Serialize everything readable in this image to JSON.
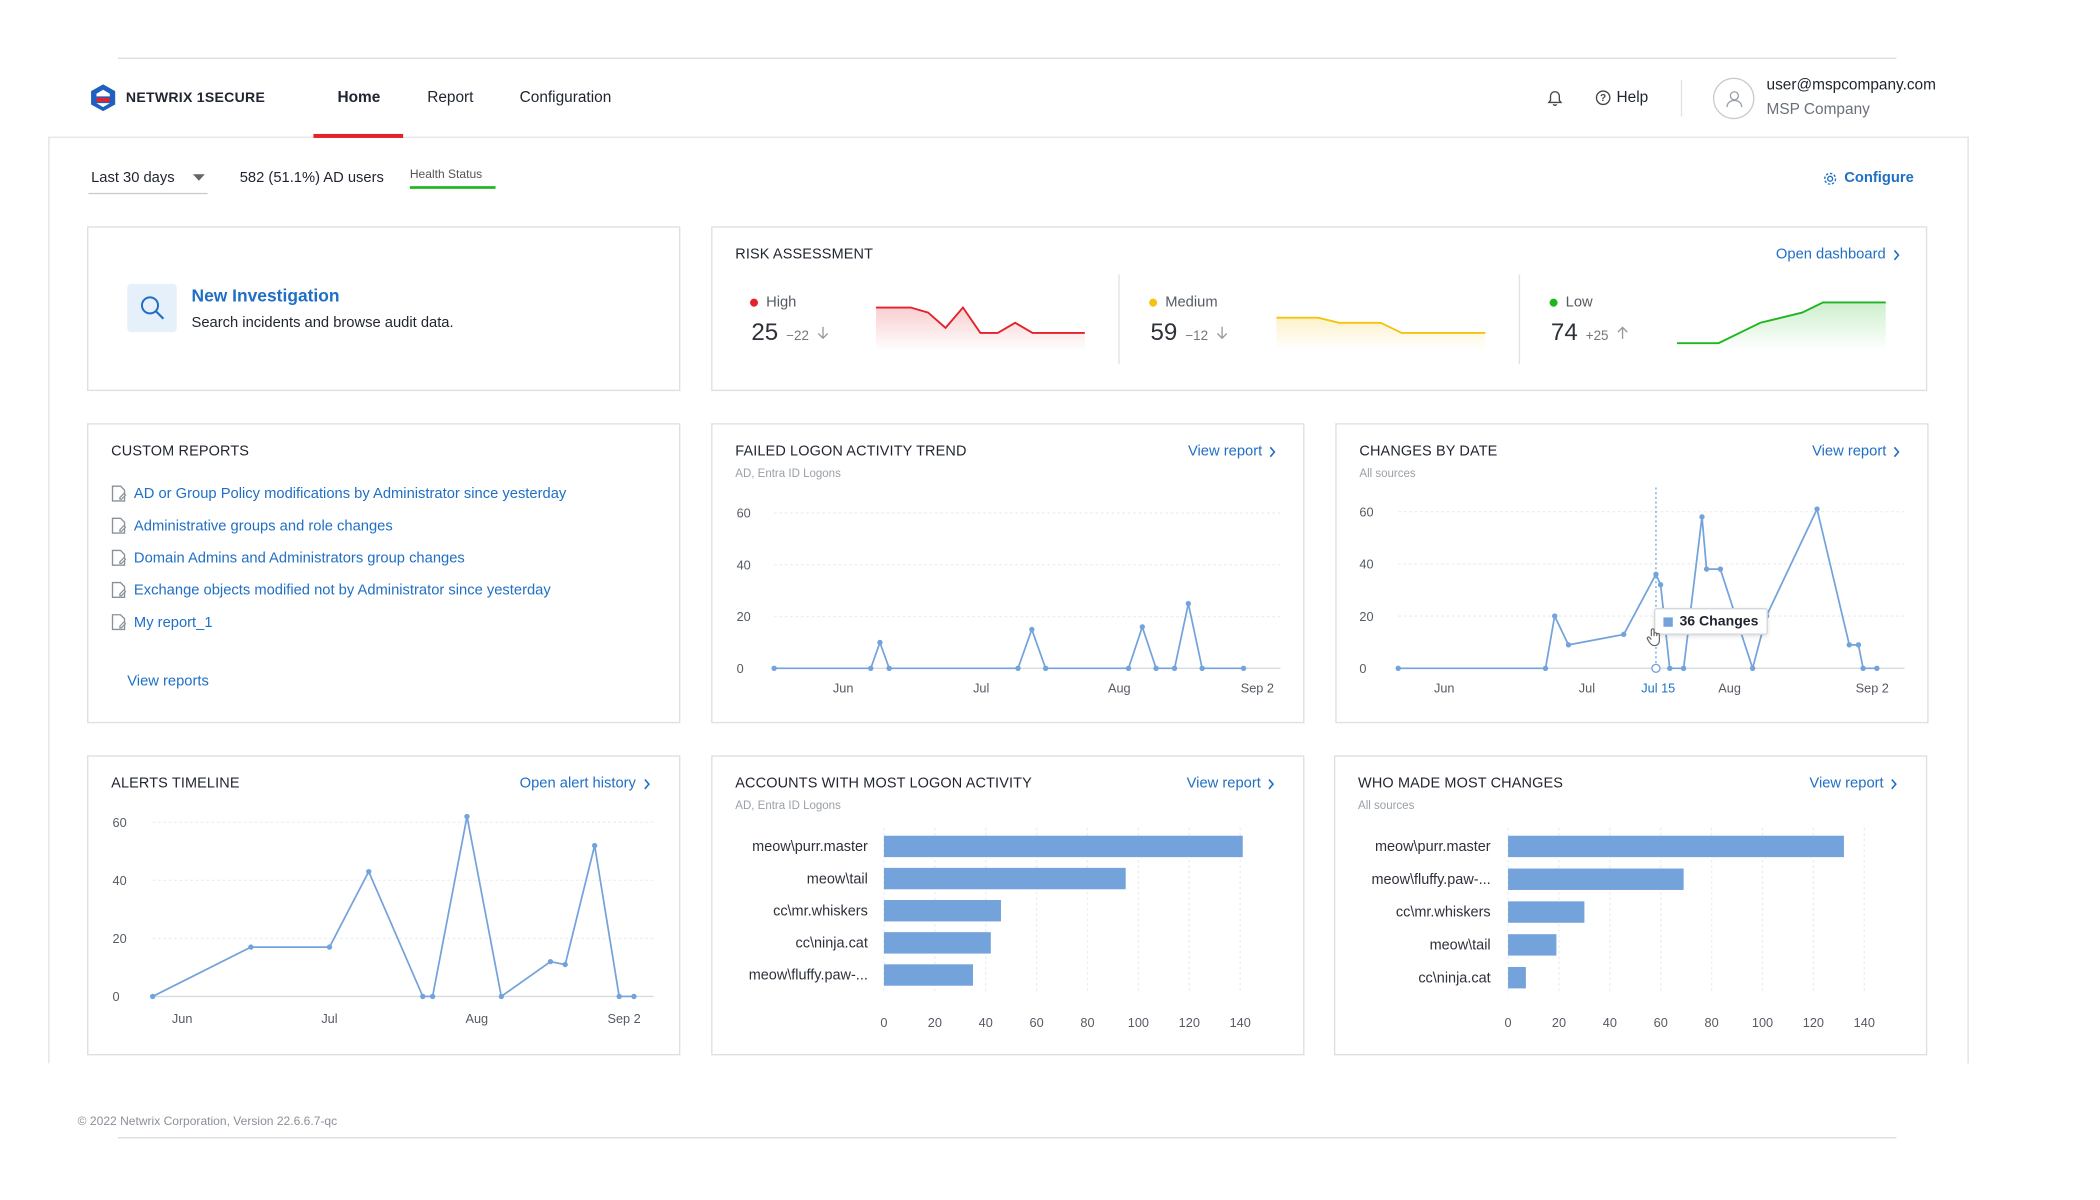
{
  "brand": {
    "name": "NETWRIX 1SECURE"
  },
  "nav": {
    "home": "Home",
    "report": "Report",
    "configuration": "Configuration"
  },
  "header": {
    "help": "Help",
    "user_email": "user@mspcompany.com",
    "company": "MSP Company"
  },
  "filters": {
    "period": "Last 30 days",
    "ad_users": "582 (51.1%) AD users",
    "health_status": "Health Status",
    "configure": "Configure"
  },
  "investigation": {
    "title": "New Investigation",
    "subtitle": "Search incidents and browse audit data."
  },
  "risk": {
    "title": "RISK ASSESSMENT",
    "open_dashboard": "Open dashboard",
    "levels": [
      {
        "label": "High",
        "value": "25",
        "delta": "−22",
        "color": "#e3222b",
        "trend": "down"
      },
      {
        "label": "Medium",
        "value": "59",
        "delta": "−12",
        "color": "#f5c211",
        "trend": "down"
      },
      {
        "label": "Low",
        "value": "74",
        "delta": "+25",
        "color": "#1fb51f",
        "trend": "up"
      }
    ]
  },
  "custom_reports": {
    "title": "CUSTOM REPORTS",
    "items": [
      "AD or Group Policy modifications by Administrator since yesterday",
      "Administrative groups and role changes",
      "Domain Admins and Administrators group changes",
      "Exchange objects modified not by Administrator since yesterday",
      "My report_1"
    ],
    "view_reports": "View reports"
  },
  "failed_logon": {
    "title": "FAILED LOGON ACTIVITY TREND",
    "subtitle": "AD, Entra ID Logons",
    "link": "View report"
  },
  "changes_by_date": {
    "title": "CHANGES BY DATE",
    "subtitle": "All sources",
    "link": "View report",
    "tooltip": "36 Changes",
    "highlight_label": "Jul 15"
  },
  "alerts_timeline": {
    "title": "ALERTS TIMELINE",
    "link": "Open alert history"
  },
  "accounts_logon": {
    "title": "ACCOUNTS WITH MOST LOGON ACTIVITY",
    "subtitle": "AD, Entra ID Logons",
    "link": "View report"
  },
  "who_changes": {
    "title": "WHO MADE MOST CHANGES",
    "subtitle": "All sources",
    "link": "View report"
  },
  "footer": {
    "copyright": "© 2022 Netwrix Corporation, Version 22.6.6.7-qc"
  },
  "chart_data": [
    {
      "type": "line",
      "title": "FAILED LOGON ACTIVITY TREND",
      "ylim": [
        0,
        60
      ],
      "y_ticks": [
        "0",
        "20",
        "40",
        "60"
      ],
      "x_ticks": [
        {
          "label": "Jun",
          "t": 15
        },
        {
          "label": "Jul",
          "t": 45
        },
        {
          "label": "Aug",
          "t": 75
        },
        {
          "label": "Sep 2",
          "t": 105
        }
      ],
      "x_range": [
        0,
        110
      ],
      "color": "#74a3dc",
      "points": [
        [
          0,
          0
        ],
        [
          21,
          0
        ],
        [
          23,
          10
        ],
        [
          25,
          0
        ],
        [
          53,
          0
        ],
        [
          56,
          15
        ],
        [
          59,
          0
        ],
        [
          77,
          0
        ],
        [
          80,
          16
        ],
        [
          83,
          0
        ],
        [
          87,
          0
        ],
        [
          90,
          25
        ],
        [
          93,
          0
        ],
        [
          102,
          0
        ]
      ],
      "markers": true
    },
    {
      "type": "line",
      "title": "CHANGES BY DATE",
      "ylim": [
        0,
        60
      ],
      "y_ticks": [
        "0",
        "20",
        "40",
        "60"
      ],
      "x_ticks": [
        {
          "label": "Jun",
          "t": 10
        },
        {
          "label": "Jul",
          "t": 41
        },
        {
          "label": "Jul 15",
          "t": 56.5
        },
        {
          "label": "Aug",
          "t": 72
        },
        {
          "label": "Sep 2",
          "t": 103
        }
      ],
      "x_range": [
        0,
        110
      ],
      "color": "#74a3dc",
      "points": [
        [
          0,
          0
        ],
        [
          32,
          0
        ],
        [
          34,
          20
        ],
        [
          37,
          9
        ],
        [
          49,
          13
        ],
        [
          56,
          36
        ],
        [
          57,
          32
        ],
        [
          59,
          0
        ],
        [
          62,
          0
        ],
        [
          66,
          58
        ],
        [
          67,
          38
        ],
        [
          70,
          38
        ],
        [
          77,
          0
        ],
        [
          80,
          20
        ],
        [
          91,
          61
        ],
        [
          98,
          9
        ],
        [
          100,
          9
        ],
        [
          101,
          0
        ],
        [
          104,
          0
        ]
      ],
      "markers": true,
      "hover_index": 5
    },
    {
      "type": "line",
      "title": "ALERTS TIMELINE",
      "ylim": [
        0,
        60
      ],
      "y_ticks": [
        "0",
        "20",
        "40",
        "60"
      ],
      "x_ticks": [
        {
          "label": "Jun",
          "t": 6
        },
        {
          "label": "Jul",
          "t": 36
        },
        {
          "label": "Aug",
          "t": 66
        },
        {
          "label": "Sep 2",
          "t": 96
        }
      ],
      "x_range": [
        0,
        102
      ],
      "color": "#74a3dc",
      "points": [
        [
          0,
          0
        ],
        [
          20,
          17
        ],
        [
          36,
          17
        ],
        [
          44,
          43
        ],
        [
          55,
          0
        ],
        [
          57,
          0
        ],
        [
          64,
          62
        ],
        [
          71,
          0
        ],
        [
          81,
          12
        ],
        [
          84,
          11
        ],
        [
          90,
          52
        ],
        [
          95,
          0
        ],
        [
          98,
          0
        ]
      ],
      "markers": true
    },
    {
      "type": "bar",
      "orientation": "horizontal",
      "title": "ACCOUNTS WITH MOST LOGON ACTIVITY",
      "categories": [
        "meow\\purr.master",
        "meow\\tail",
        "cc\\mr.whiskers",
        "cc\\ninja.cat",
        "meow\\fluffy.paw-..."
      ],
      "values": [
        141,
        95,
        46,
        42,
        35
      ],
      "xlim": [
        0,
        140
      ],
      "x_ticks": [
        "0",
        "20",
        "40",
        "60",
        "80",
        "100",
        "120",
        "140"
      ],
      "color": "#74a3dc"
    },
    {
      "type": "bar",
      "orientation": "horizontal",
      "title": "WHO MADE MOST CHANGES",
      "categories": [
        "meow\\purr.master",
        "meow\\fluffy.paw-...",
        "cc\\mr.whiskers",
        "meow\\tail",
        "cc\\ninja.cat"
      ],
      "values": [
        132,
        69,
        30,
        19,
        7
      ],
      "xlim": [
        0,
        140
      ],
      "x_ticks": [
        "0",
        "20",
        "40",
        "60",
        "80",
        "100",
        "120",
        "140"
      ],
      "color": "#74a3dc"
    },
    {
      "type": "area",
      "title": "High",
      "color": "#e3222b",
      "values": [
        8,
        8,
        8,
        7,
        4,
        8,
        3,
        3,
        5,
        3,
        3,
        3,
        3
      ],
      "ylim": [
        0,
        10
      ]
    },
    {
      "type": "area",
      "title": "Medium",
      "color": "#f5c211",
      "values": [
        6,
        6,
        6,
        5,
        5,
        5,
        3,
        3,
        3,
        3,
        3
      ],
      "ylim": [
        0,
        10
      ]
    },
    {
      "type": "area",
      "title": "Low",
      "color": "#1fb51f",
      "values": [
        1,
        1,
        1,
        3,
        5,
        6,
        7,
        9,
        9,
        9,
        9
      ],
      "ylim": [
        0,
        10
      ]
    }
  ]
}
